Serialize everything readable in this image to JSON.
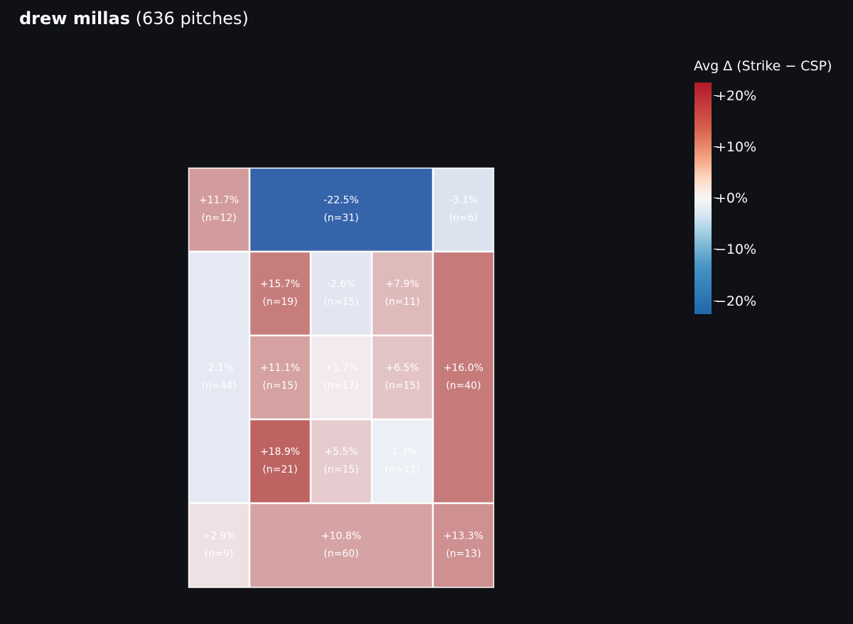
{
  "title": {
    "name": "drew millas",
    "suffix": "(636 pitches)"
  },
  "colorbar": {
    "title": "Avg Δ (Strike − CSP)",
    "ticks": [
      "+20%",
      "+10%",
      "+0%",
      "−10%",
      "−20%"
    ],
    "tick_values": [
      20,
      10,
      0,
      -10,
      -20
    ],
    "range": [
      -22.5,
      22.5
    ],
    "colorscale": [
      "#2166ac",
      "#f7f7f7",
      "#b2182b"
    ]
  },
  "chart_data": {
    "type": "heatmap",
    "title": "",
    "xlabel": "",
    "ylabel": "",
    "value_unit": "percent",
    "zones": [
      {
        "id": "outside-top-left",
        "value": 11.7,
        "label": "+11.7%",
        "n_label": "(n=12)"
      },
      {
        "id": "outside-top",
        "value": -22.5,
        "label": "-22.5%",
        "n_label": "(n=31)"
      },
      {
        "id": "outside-top-right",
        "value": -3.1,
        "label": "-3.1%",
        "n_label": "(n=6)"
      },
      {
        "id": "outside-left",
        "value": -2.1,
        "label": "-2.1%",
        "n_label": "(n=44)"
      },
      {
        "id": "zone-1",
        "value": 15.7,
        "label": "+15.7%",
        "n_label": "(n=19)"
      },
      {
        "id": "zone-2",
        "value": -2.6,
        "label": "-2.6%",
        "n_label": "(n=15)"
      },
      {
        "id": "zone-3",
        "value": 7.9,
        "label": "+7.9%",
        "n_label": "(n=11)"
      },
      {
        "id": "outside-right",
        "value": 16.0,
        "label": "+16.0%",
        "n_label": "(n=40)"
      },
      {
        "id": "zone-4",
        "value": 11.1,
        "label": "+11.1%",
        "n_label": "(n=15)"
      },
      {
        "id": "zone-5",
        "value": 1.7,
        "label": "+1.7%",
        "n_label": "(n=17)"
      },
      {
        "id": "zone-6",
        "value": 6.5,
        "label": "+6.5%",
        "n_label": "(n=15)"
      },
      {
        "id": "zone-7",
        "value": 18.9,
        "label": "+18.9%",
        "n_label": "(n=21)"
      },
      {
        "id": "zone-8",
        "value": 5.5,
        "label": "+5.5%",
        "n_label": "(n=15)"
      },
      {
        "id": "zone-9",
        "value": -1.3,
        "label": "-1.3%",
        "n_label": "(n=13)"
      },
      {
        "id": "outside-bottom-left",
        "value": 2.9,
        "label": "+2.9%",
        "n_label": "(n=9)"
      },
      {
        "id": "outside-bottom",
        "value": 10.8,
        "label": "+10.8%",
        "n_label": "(n=60)"
      },
      {
        "id": "outside-bottom-right",
        "value": 13.3,
        "label": "+13.3%",
        "n_label": "(n=13)"
      }
    ]
  }
}
